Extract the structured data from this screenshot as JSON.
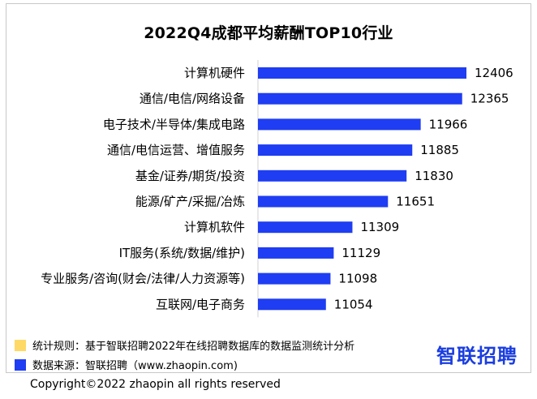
{
  "chart_data": {
    "type": "bar",
    "orientation": "horizontal",
    "title": "2022Q4成都平均薪酬TOP10行业",
    "categories": [
      "计算机硬件",
      "通信/电信/网络设备",
      "电子技术/半导体/集成电路",
      "通信/电信运营、增值服务",
      "基金/证券/期货/投资",
      "能源/矿产/采掘/冶炼",
      "计算机软件",
      "IT服务(系统/数据/维护)",
      "专业服务/咨询(财会/法律/人力资源等)",
      "互联网/电子商务"
    ],
    "values": [
      12406,
      12365,
      11966,
      11885,
      11830,
      11651,
      11309,
      11129,
      11098,
      11054
    ],
    "value_labels": [
      "12406",
      "12365",
      "11966",
      "11885",
      "11830",
      "11651",
      "11309",
      "11129",
      "11098",
      "11054"
    ],
    "xlim": [
      10400,
      12500
    ],
    "bar_color": "#1f3df2",
    "grid": false,
    "xlabel": "",
    "ylabel": ""
  },
  "legend": [
    {
      "text": "统计规则：基于智联招聘2022年在线招聘数据库的数据监测统计分析",
      "color": "#ffd966"
    },
    {
      "text": "数据来源：智联招聘（www.zhaopin.com)",
      "color": "#1f3df2"
    }
  ],
  "logo": {
    "text": "智联招聘",
    "color": "#1a3de0"
  },
  "copyright": "Copyright©2022 zhaopin all rights reserved"
}
